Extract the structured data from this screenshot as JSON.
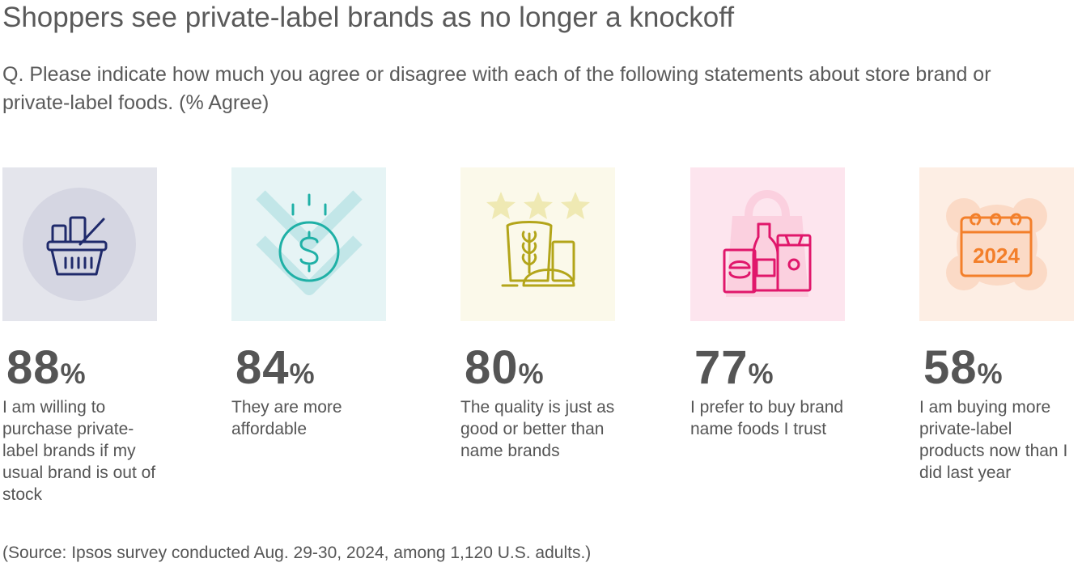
{
  "title": "Shoppers see private-label brands as no longer a knockoff",
  "subtitle": "Q. Please indicate how much you agree or disagree with each of the following statements about store brand or private-label foods. (% Agree)",
  "source": "(Source: Ipsos survey conducted Aug. 29-30, 2024, among 1,120 U.S. adults.)",
  "percent_symbol": "%",
  "icon_year_text": "2024",
  "colors": {
    "text": "#555555",
    "tile_backgrounds": [
      "#e4e5ec",
      "#e6f4f5",
      "#fbf9ea",
      "#fde5ee",
      "#fdeee4"
    ],
    "icon_colors": [
      "#1f2a6b",
      "#1fb0a6",
      "#b3a51a",
      "#e0176b",
      "#f37f2a"
    ]
  },
  "chart_data": {
    "type": "bar",
    "title": "Shoppers see private-label brands as no longer a knockoff",
    "subtitle": "Q. Please indicate how much you agree or disagree with each of the following statements about store brand or private-label foods. (% Agree)",
    "unit": "%",
    "categories": [
      "I am willing to purchase private-label brands if my usual brand is out of stock",
      "They are more affordable",
      "The quality is just as good or better than name brands",
      "I prefer to buy brand name foods I trust",
      "I am buying more private-label products now than I did last year"
    ],
    "values": [
      88,
      84,
      80,
      77,
      58
    ],
    "icons": [
      "shopping-basket-icon",
      "dollar-down-icon",
      "grocery-stars-icon",
      "grocery-bag-icon",
      "calendar-2024-icon"
    ]
  }
}
